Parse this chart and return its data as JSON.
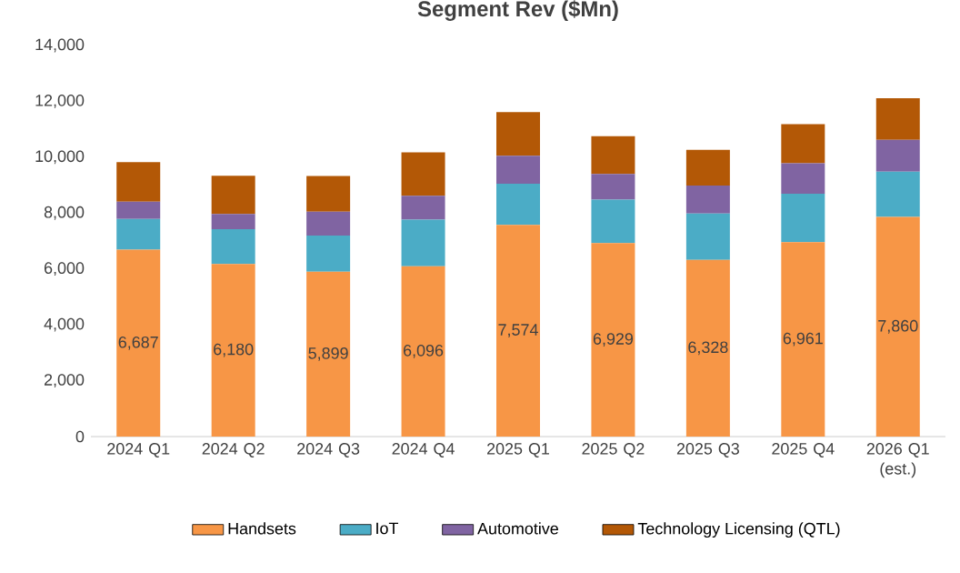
{
  "chart_data": {
    "type": "bar",
    "title": "Segment Rev ($Mn)",
    "stacked": true,
    "legend": "bottom",
    "grid": false,
    "categories": [
      "2024 Q1",
      "2024 Q2",
      "2024 Q3",
      "2024 Q4",
      "2025 Q1",
      "2025 Q2",
      "2025 Q3",
      "2025 Q4",
      "2026 Q1 (est.)"
    ],
    "ylim": [
      0,
      14000
    ],
    "yticks": [
      0,
      {
        "value": 2000,
        "label": "2,000"
      },
      {
        "value": 4000,
        "label": "4,000"
      },
      {
        "value": 6000,
        "label": "6,000"
      },
      {
        "value": 8000,
        "label": "8,000"
      },
      {
        "value": 10000,
        "label": "10,000"
      },
      {
        "value": 12000,
        "label": "12,000"
      },
      {
        "value": 14000,
        "label": "14,000"
      }
    ],
    "series": [
      {
        "name": "Handsets",
        "color": "#f79646",
        "values": [
          6687,
          6180,
          5899,
          6096,
          7574,
          6929,
          6328,
          6961,
          7860
        ],
        "value_labels": [
          "6,687",
          "6,180",
          "5,899",
          "6,096",
          "7,574",
          "6,929",
          "6,328",
          "6,961",
          "7,860"
        ]
      },
      {
        "name": "IoT",
        "color": "#4bacc6",
        "values": [
          1100,
          1240,
          1300,
          1670,
          1480,
          1550,
          1660,
          1730,
          1620
        ]
      },
      {
        "name": "Automotive",
        "color": "#8064a2",
        "values": [
          620,
          550,
          850,
          850,
          1000,
          920,
          1000,
          1090,
          1140
        ]
      },
      {
        "name": "Technology Licensing (QTL)",
        "color": "#b35806",
        "values": [
          1420,
          1370,
          1280,
          1560,
          1560,
          1350,
          1280,
          1400,
          1490
        ]
      }
    ]
  }
}
